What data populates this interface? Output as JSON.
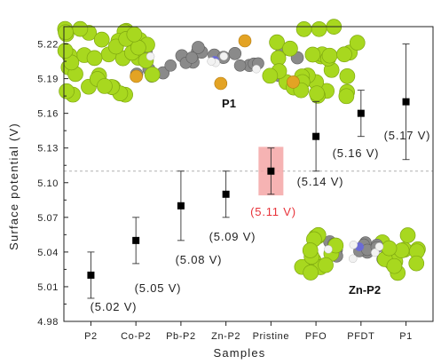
{
  "chart_data": {
    "type": "scatter",
    "xlabel": "Samples",
    "ylabel": "Surface potential (V)",
    "categories": [
      "P2",
      "Co-P2",
      "Pb-P2",
      "Zn-P2",
      "Pristine",
      "PFO",
      "PFDT",
      "P1"
    ],
    "values": [
      5.02,
      5.05,
      5.08,
      5.09,
      5.11,
      5.14,
      5.16,
      5.17
    ],
    "error_low": [
      5.0,
      5.03,
      5.05,
      5.07,
      5.09,
      5.11,
      5.14,
      5.12
    ],
    "error_high": [
      5.04,
      5.07,
      5.11,
      5.11,
      5.13,
      5.17,
      5.18,
      5.22
    ],
    "data_labels": [
      "(5.02 V)",
      "(5.05 V)",
      "(5.08 V)",
      "(5.09 V)",
      "(5.11 V)",
      "(5.14 V)",
      "(5.16 V)",
      "(5.17 V)"
    ],
    "yticks": [
      "4.98",
      "5.01",
      "5.04",
      "5.07",
      "5.10",
      "5.13",
      "5.16",
      "5.19",
      "5.22"
    ],
    "ylim": [
      4.98,
      5.235
    ],
    "reference_line": 5.11,
    "highlight_category": "Pristine",
    "highlight_color": "#e8333a",
    "highlight_fill": "#f4a6a6",
    "marker_color": "#000000",
    "grid": false
  },
  "insets": {
    "top_molecule_label": "P1",
    "bottom_molecule_label": "Zn-P2",
    "atom_colors": {
      "fluorine": "#a8d81f",
      "carbon": "#8a8a8a",
      "sulfur": "#e3a324",
      "hydrogen": "#f2f2f2",
      "nitrogen": "#6b6bd6"
    }
  }
}
